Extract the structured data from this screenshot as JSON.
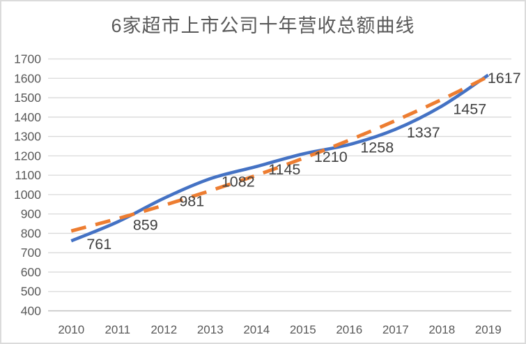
{
  "chart_data": {
    "type": "line",
    "title": "6家超市上市公司十年营收总额曲线",
    "xlabel": "",
    "ylabel": "",
    "categories": [
      "2010",
      "2011",
      "2012",
      "2013",
      "2014",
      "2015",
      "2016",
      "2017",
      "2018",
      "2019"
    ],
    "yticks": [
      400,
      500,
      600,
      700,
      800,
      900,
      1000,
      1100,
      1200,
      1300,
      1400,
      1500,
      1600,
      1700
    ],
    "ylim": [
      400,
      1700
    ],
    "grid": true,
    "legend": "none",
    "series": [
      {
        "id": "revenue-total",
        "color": "#4472C4",
        "line_style": "solid",
        "smooth": true,
        "data_labels": true,
        "values": [
          761,
          859,
          981,
          1082,
          1145,
          1210,
          1258,
          1337,
          1457,
          1617
        ]
      },
      {
        "id": "trendline",
        "color": "#ED7D31",
        "line_style": "dashed",
        "smooth": true,
        "data_labels": false,
        "values": [
          812,
          876,
          945,
          1020,
          1100,
          1187,
          1281,
          1382,
          1491,
          1609
        ]
      }
    ]
  },
  "theme": {
    "background": "#FFFFFF",
    "border": "#DBDBDB",
    "gridline": "#D9D9D9",
    "axis_line": "#C0C0C0",
    "title_color": "#595959",
    "axis_label_color": "#595959",
    "data_label_color": "#404040"
  }
}
